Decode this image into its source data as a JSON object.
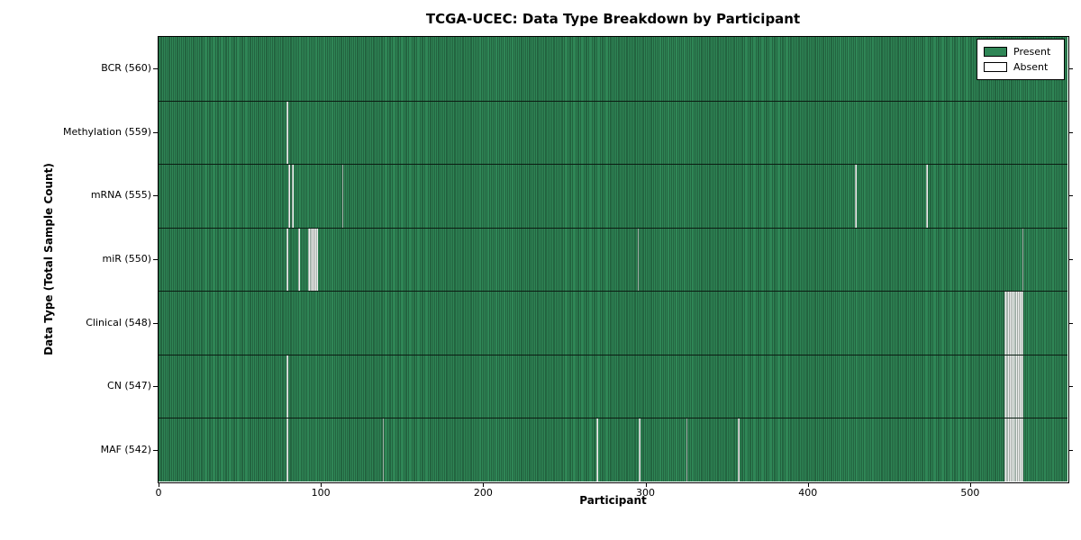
{
  "chart_data": {
    "type": "heatmap",
    "title": "TCGA-UCEC: Data Type Breakdown by Participant",
    "xlabel": "Participant",
    "ylabel": "Data Type (Total Sample Count)",
    "n_participants": 560,
    "x_ticks": [
      0,
      100,
      200,
      300,
      400,
      500
    ],
    "x_range": [
      0,
      560
    ],
    "grid": false,
    "legend_position": "upper right",
    "legend": [
      {
        "label": "Present",
        "color": "#2f8656"
      },
      {
        "label": "Absent",
        "color": "#ffffff"
      }
    ],
    "cell_colors": {
      "present": "#2f8656",
      "absent": "#f0f0f0",
      "cell_edge": "#000000"
    },
    "rows": [
      {
        "label": "BCR (560)",
        "data_type": "BCR",
        "count": 560,
        "absent_participants": []
      },
      {
        "label": "Methylation (559)",
        "data_type": "Methylation",
        "count": 559,
        "absent_participants": [
          79
        ]
      },
      {
        "label": "mRNA (555)",
        "data_type": "mRNA",
        "count": 555,
        "absent_participants": [
          80,
          82,
          113,
          429,
          473
        ]
      },
      {
        "label": "miR (550)",
        "data_type": "miR",
        "count": 550,
        "absent_participants": [
          79,
          86,
          92,
          93,
          94,
          95,
          96,
          97,
          295,
          532
        ]
      },
      {
        "label": "Clinical (548)",
        "data_type": "Clinical",
        "count": 548,
        "absent_participants": [
          521,
          522,
          523,
          524,
          525,
          526,
          527,
          528,
          529,
          530,
          531,
          532
        ]
      },
      {
        "label": "CN (547)",
        "data_type": "CN",
        "count": 547,
        "absent_participants": [
          79,
          521,
          522,
          523,
          524,
          525,
          526,
          527,
          528,
          529,
          530,
          531,
          532
        ]
      },
      {
        "label": "MAF (542)",
        "data_type": "MAF",
        "count": 542,
        "absent_participants": [
          79,
          138,
          270,
          296,
          325,
          357,
          521,
          522,
          523,
          524,
          525,
          526,
          527,
          528,
          529,
          530,
          531,
          532
        ]
      }
    ]
  }
}
